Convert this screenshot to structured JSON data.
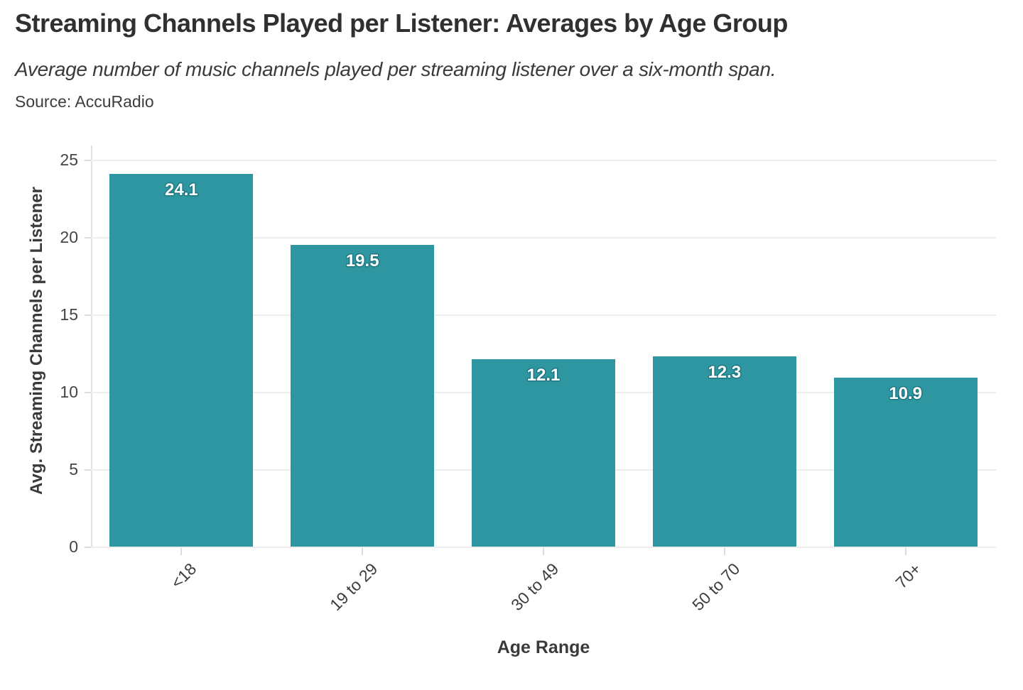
{
  "chart_data": {
    "type": "bar",
    "title": "Streaming Channels Played per Listener: Averages by Age Group",
    "subtitle": "Average number of music channels played per streaming listener over a six-month span.",
    "source": "Source: AccuRadio",
    "categories": [
      "<18",
      "19 to 29",
      "30 to 49",
      "50 to 70",
      "70+"
    ],
    "values": [
      24.1,
      19.5,
      12.1,
      12.3,
      10.9
    ],
    "value_labels": [
      "24.1",
      "19.5",
      "12.1",
      "12.3",
      "10.9"
    ],
    "xlabel": "Age Range",
    "ylabel": "Avg. Streaming Channels per Listener",
    "ylim": [
      0,
      25
    ],
    "yticks": [
      0,
      5,
      10,
      15,
      20,
      25
    ],
    "grid": true,
    "legend": false,
    "colors": {
      "bar": "#2e96a0",
      "bar_label_text": "#ffffff",
      "bar_label_outline": "#1d7680",
      "gridline": "#eeeeee",
      "axis_line": "#e2e2e2",
      "title_text": "#303030"
    }
  }
}
